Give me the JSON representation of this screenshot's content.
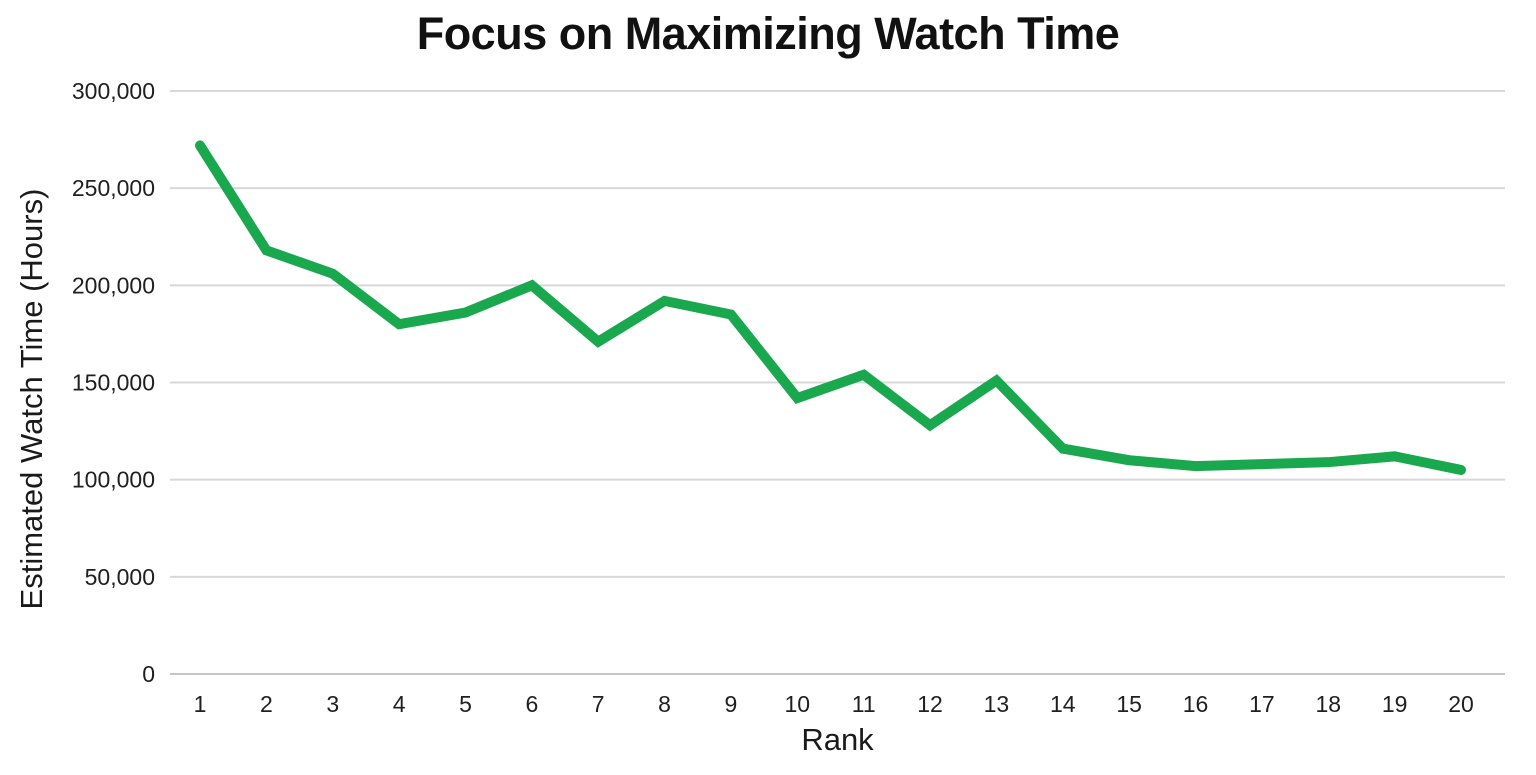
{
  "chart_data": {
    "type": "line",
    "title": "Focus on Maximizing Watch Time",
    "xlabel": "Rank",
    "ylabel": "Estimated Watch Time (Hours)",
    "x": [
      1,
      2,
      3,
      4,
      5,
      6,
      7,
      8,
      9,
      10,
      11,
      12,
      13,
      14,
      15,
      16,
      17,
      18,
      19,
      20
    ],
    "series": [
      {
        "name": "Estimated Watch Time (Hours)",
        "values": [
          272000,
          218000,
          206000,
          180000,
          186000,
          200000,
          171000,
          192000,
          185000,
          142000,
          154000,
          128000,
          151000,
          116000,
          110000,
          107000,
          108000,
          109000,
          112000,
          105000
        ]
      }
    ],
    "ylim": [
      0,
      300000
    ],
    "ytick_step": 50000,
    "ytick_labels": [
      "0",
      "50,000",
      "100,000",
      "150,000",
      "200,000",
      "250,000",
      "300,000"
    ],
    "xtick_labels": [
      "1",
      "2",
      "3",
      "4",
      "5",
      "6",
      "7",
      "8",
      "9",
      "10",
      "11",
      "12",
      "13",
      "14",
      "15",
      "16",
      "17",
      "18",
      "19",
      "20"
    ],
    "grid": true,
    "legend": false,
    "colors": {
      "line": "#1aa84e",
      "gridline": "#d8d8d8",
      "axis_line": "#c6c6c6",
      "text": "#1f1f1f",
      "title": "#111111",
      "background": "#ffffff"
    },
    "line_width": 10
  }
}
